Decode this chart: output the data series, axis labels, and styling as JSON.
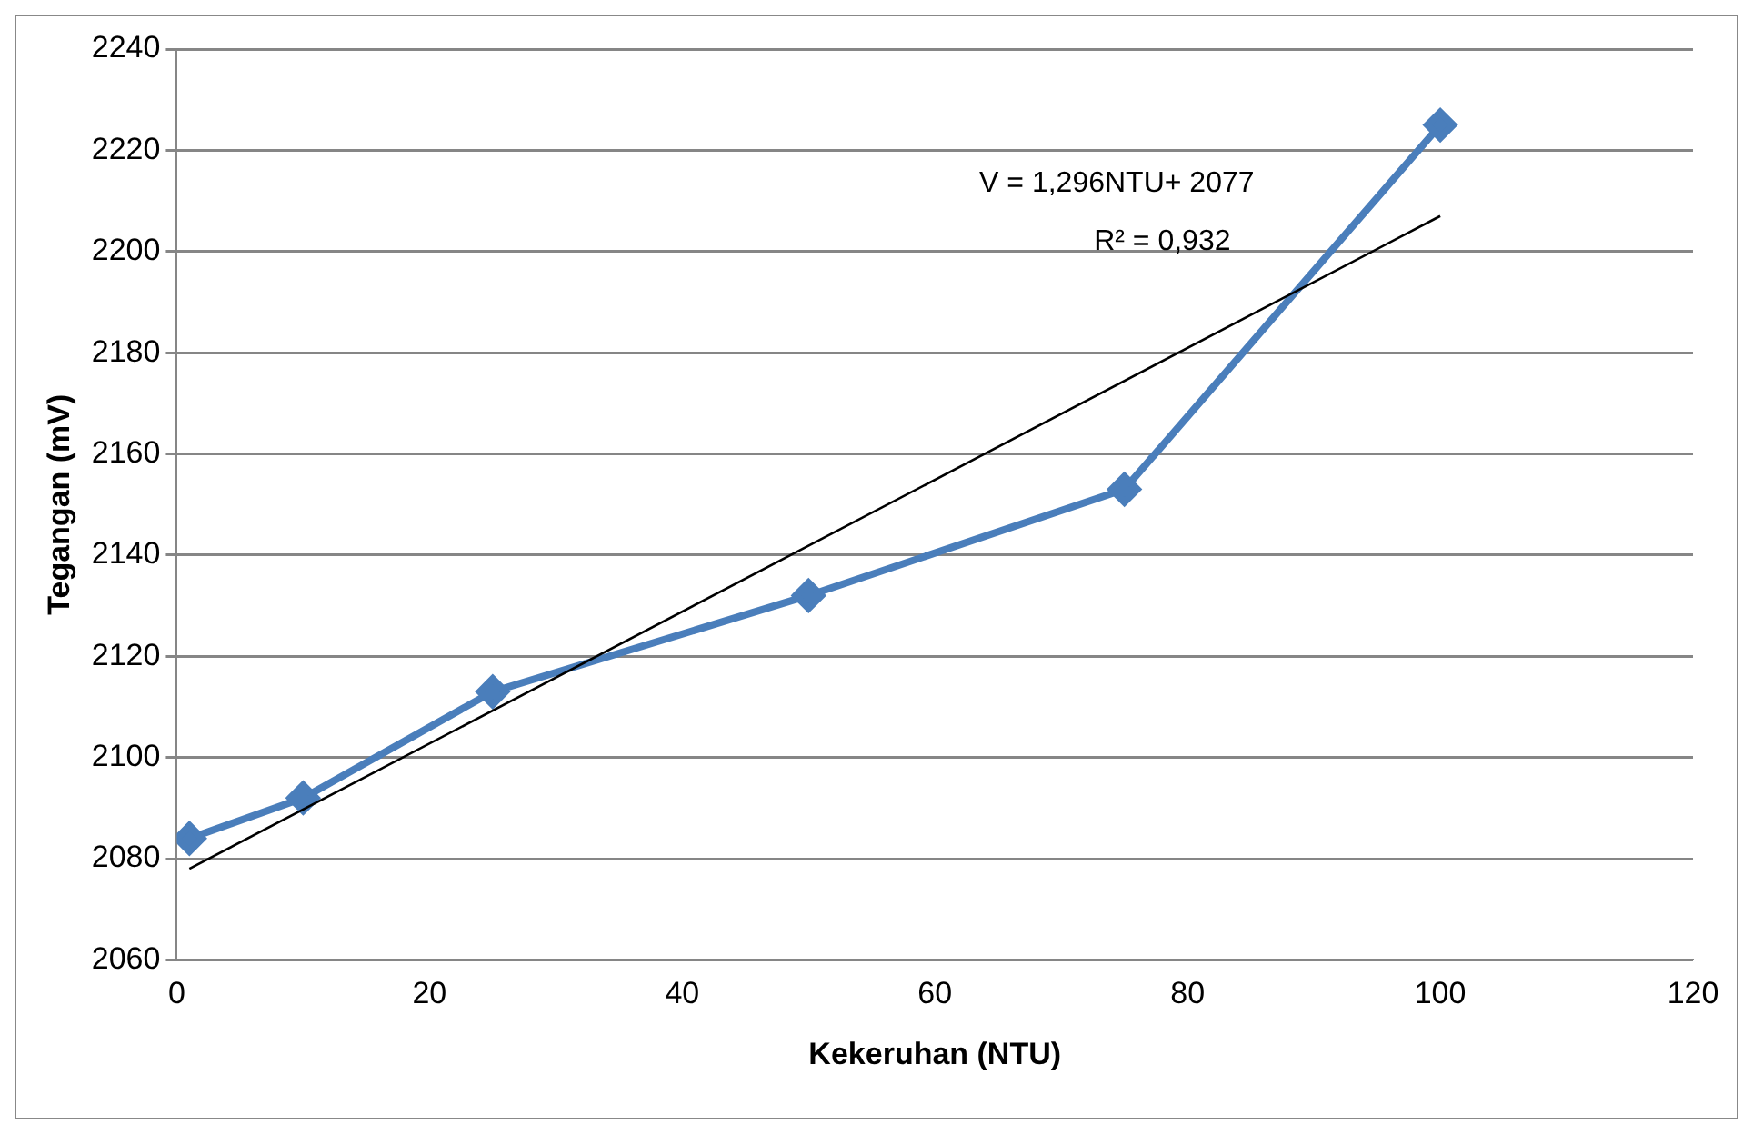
{
  "chart_data": {
    "type": "line",
    "xlabel": "Kekeruhan (NTU)",
    "ylabel": "Tegangan (mV)",
    "xlim": [
      0,
      120
    ],
    "xticks": [
      0,
      20,
      40,
      60,
      80,
      100,
      120
    ],
    "ylim": [
      2060,
      2240
    ],
    "yticks": [
      2060,
      2080,
      2100,
      2120,
      2140,
      2160,
      2180,
      2200,
      2220,
      2240
    ],
    "grid": "y",
    "legend": false,
    "series": [
      {
        "color": "#4a7ebb",
        "marker": "diamond",
        "x": [
          1,
          10,
          25,
          50,
          75,
          100
        ],
        "values": [
          2084,
          2092,
          2113,
          2132,
          2153,
          2225
        ]
      },
      {
        "color": "#000000",
        "marker": "none",
        "x": [
          1,
          100
        ],
        "values": [
          2078,
          2207
        ]
      }
    ],
    "annotations": [
      "V = 1,296NTU+ 2077",
      "R² = 0,932"
    ]
  }
}
